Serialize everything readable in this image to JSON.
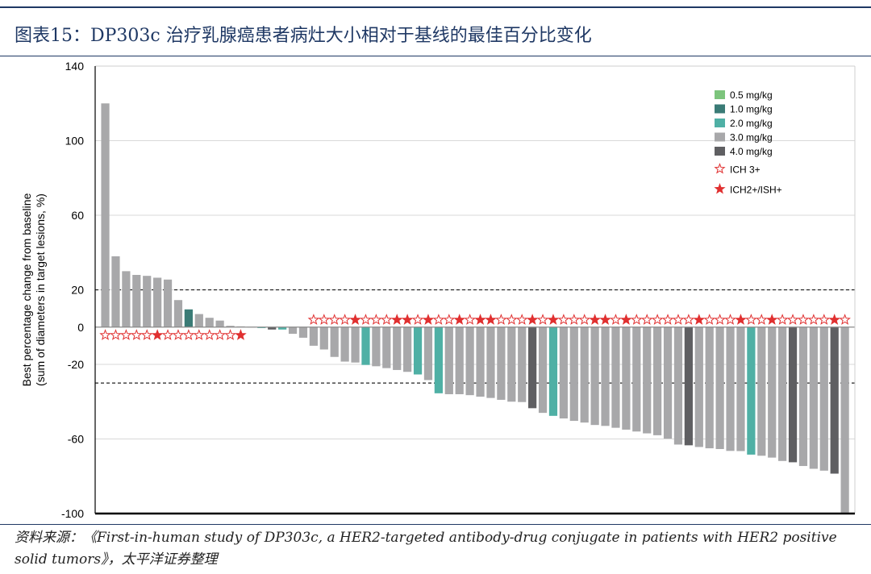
{
  "title": "图表15：DP303c 治疗乳腺癌患者病灶大小相对于基线的最佳百分比变化",
  "source": "资料来源：《First-in-human study of DP303c, a HER2-targeted antibody-drug conjugate in patients with HER2 positive solid tumors》，太平洋证券整理",
  "colors": {
    "dose_0_5": "#7cc47c",
    "dose_1_0": "#3a7b76",
    "dose_2_0": "#4fb0a5",
    "dose_3_0": "#a8a8aa",
    "dose_4_0": "#5f5f62",
    "star": "#e03030"
  },
  "chart_data": {
    "type": "bar",
    "subtype": "waterfall",
    "ylabel_line1": "Best percentage change from baseline",
    "ylabel_line2": "(sum of diameters in target lesions, %)",
    "ylim": [
      -100,
      140
    ],
    "yticks": [
      140,
      100,
      60,
      20,
      0,
      -20,
      -60,
      -100
    ],
    "reference_lines": [
      20,
      -30
    ],
    "legend_position": "top-right",
    "series": [
      {
        "name": "0.5 mg/kg",
        "color_key": "dose_0_5"
      },
      {
        "name": "1.0 mg/kg",
        "color_key": "dose_1_0"
      },
      {
        "name": "2.0 mg/kg",
        "color_key": "dose_2_0"
      },
      {
        "name": "3.0 mg/kg",
        "color_key": "dose_3_0"
      },
      {
        "name": "4.0 mg/kg",
        "color_key": "dose_4_0"
      }
    ],
    "markers": [
      {
        "name": "ICH 3+",
        "style": "open-star"
      },
      {
        "name": "ICH2+/ISH+",
        "style": "filled-star"
      }
    ],
    "values": [
      120,
      38,
      30,
      28,
      27.5,
      26.5,
      25.5,
      14.5,
      9.5,
      7,
      5,
      3.5,
      0.7,
      0.4,
      0.2,
      -0.5,
      -1.3,
      -1.3,
      -3.6,
      -5.7,
      -10,
      -12,
      -16,
      -18.5,
      -19,
      -20.3,
      -21,
      -22,
      -23,
      -24,
      -25.4,
      -28.4,
      -35.5,
      -36,
      -36,
      -36.5,
      -37.3,
      -38,
      -39,
      -40,
      -40.2,
      -43.5,
      -46,
      -47.6,
      -49,
      -50.3,
      -51.2,
      -52.5,
      -53,
      -54,
      -55,
      -56,
      -57,
      -58,
      -59.8,
      -63,
      -63.4,
      -64.3,
      -65,
      -65.4,
      -66.4,
      -66.5,
      -68.4,
      -69,
      -70,
      -71.8,
      -72.5,
      -74.5,
      -76,
      -77,
      -78.6,
      -99.5
    ],
    "doses": [
      "3.0",
      "3.0",
      "3.0",
      "3.0",
      "3.0",
      "3.0",
      "3.0",
      "3.0",
      "1.0",
      "3.0",
      "3.0",
      "3.0",
      "3.0",
      "3.0",
      "3.0",
      "2.0",
      "4.0",
      "2.0",
      "3.0",
      "3.0",
      "3.0",
      "3.0",
      "3.0",
      "3.0",
      "3.0",
      "2.0",
      "3.0",
      "3.0",
      "3.0",
      "3.0",
      "2.0",
      "3.0",
      "2.0",
      "3.0",
      "3.0",
      "3.0",
      "3.0",
      "3.0",
      "3.0",
      "3.0",
      "3.0",
      "4.0",
      "3.0",
      "2.0",
      "3.0",
      "3.0",
      "3.0",
      "3.0",
      "3.0",
      "3.0",
      "3.0",
      "3.0",
      "3.0",
      "3.0",
      "3.0",
      "3.0",
      "4.0",
      "3.0",
      "3.0",
      "3.0",
      "3.0",
      "3.0",
      "2.0",
      "3.0",
      "3.0",
      "3.0",
      "4.0",
      "3.0",
      "3.0",
      "3.0",
      "4.0",
      "3.0"
    ],
    "stars": [
      "o",
      "o",
      "o",
      "o",
      "o",
      "f",
      "o",
      "o",
      "o",
      "o",
      "o",
      "o",
      "o",
      "f",
      "",
      "",
      "",
      "",
      "",
      "",
      "o",
      "o",
      "o",
      "o",
      "f",
      "o",
      "o",
      "o",
      "f",
      "f",
      "o",
      "f",
      "o",
      "o",
      "f",
      "o",
      "f",
      "f",
      "o",
      "o",
      "o",
      "f",
      "o",
      "f",
      "o",
      "o",
      "o",
      "f",
      "f",
      "o",
      "f",
      "o",
      "o",
      "o",
      "o",
      "o",
      "o",
      "f",
      "o",
      "o",
      "o",
      "f",
      "o",
      "o",
      "f",
      "o",
      "o",
      "o",
      "o",
      "o",
      "f",
      "o"
    ]
  }
}
